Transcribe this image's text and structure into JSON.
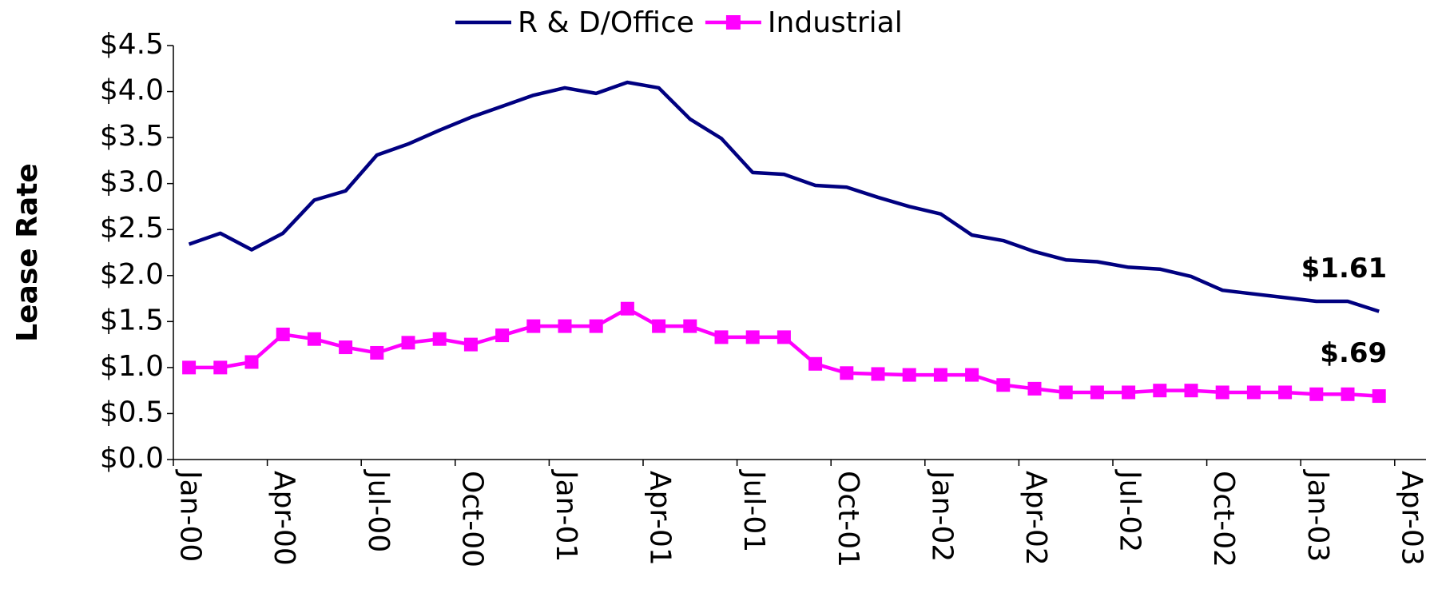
{
  "chart_data": {
    "type": "line",
    "axis_label_y": "Lease Rate",
    "categories": [
      "Jan-00",
      null,
      null,
      "Apr-00",
      null,
      null,
      "Jul-00",
      null,
      null,
      "Oct-00",
      null,
      null,
      "Jan-01",
      null,
      null,
      "Apr-01",
      null,
      null,
      "Jul-01",
      null,
      null,
      "Oct-01",
      null,
      null,
      "Jan-02",
      null,
      null,
      "Apr-02",
      null,
      null,
      "Jul-02",
      null,
      null,
      "Oct-02",
      null,
      null,
      "Jan-03",
      null,
      null,
      "Apr-03"
    ],
    "series": [
      {
        "name": "R & D/Office",
        "color": "#000080",
        "marker": "none",
        "values": [
          2.34,
          2.46,
          2.28,
          2.46,
          2.82,
          2.92,
          3.31,
          3.43,
          3.58,
          3.72,
          3.84,
          3.96,
          4.04,
          3.98,
          4.1,
          4.04,
          3.7,
          3.49,
          3.12,
          3.1,
          2.98,
          2.96,
          2.85,
          2.75,
          2.67,
          2.44,
          2.38,
          2.26,
          2.17,
          2.15,
          2.09,
          2.07,
          1.99,
          1.84,
          1.8,
          1.76,
          1.72,
          1.72,
          1.61,
          null
        ]
      },
      {
        "name": "Industrial",
        "color": "#ff00ff",
        "marker": "square",
        "values": [
          1.0,
          1.0,
          1.06,
          1.36,
          1.31,
          1.22,
          1.16,
          1.27,
          1.31,
          1.25,
          1.35,
          1.45,
          1.45,
          1.45,
          1.64,
          1.45,
          1.45,
          1.33,
          1.33,
          1.33,
          1.04,
          0.94,
          0.93,
          0.92,
          0.92,
          0.92,
          0.81,
          0.77,
          0.73,
          0.73,
          0.73,
          0.75,
          0.75,
          0.73,
          0.73,
          0.73,
          0.71,
          0.71,
          0.69,
          null
        ]
      }
    ],
    "annotations": [
      {
        "text": "$1.61",
        "series": 0,
        "index": 38
      },
      {
        "text": "$.69",
        "series": 1,
        "index": 38
      }
    ],
    "ylim": [
      0,
      4.5
    ],
    "yticks": [
      {
        "value": 0,
        "label": "$0.0"
      },
      {
        "value": 0.5,
        "label": "$0.5"
      },
      {
        "value": 1,
        "label": "$1.0"
      },
      {
        "value": 1.5,
        "label": "$1.5"
      },
      {
        "value": 2,
        "label": "$2.0"
      },
      {
        "value": 2.5,
        "label": "$2.5"
      },
      {
        "value": 3,
        "label": "$3.0"
      },
      {
        "value": 3.5,
        "label": "$3.5"
      },
      {
        "value": 4,
        "label": "$4.0"
      },
      {
        "value": 4.5,
        "label": "$4.5"
      }
    ],
    "grid": false,
    "legend": "top"
  }
}
